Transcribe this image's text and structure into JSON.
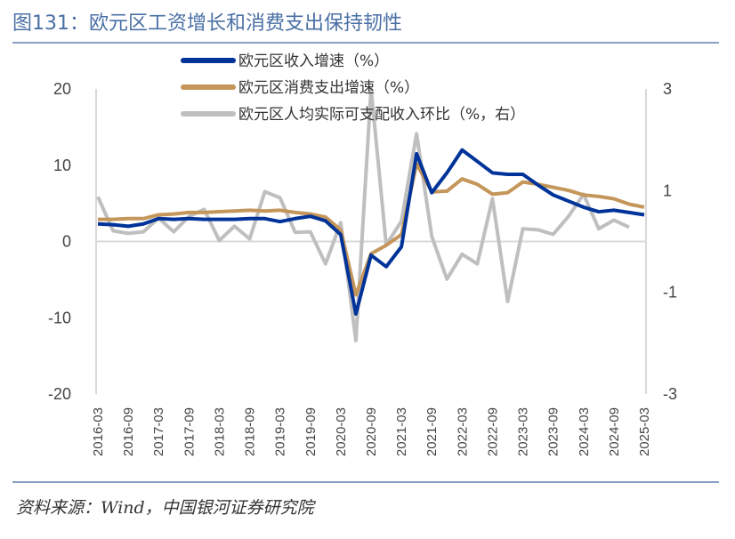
{
  "title": "图131：欧元区工资增长和消费支出保持韧性",
  "source": "资料来源：Wind，中国银河证券研究院",
  "chart_data": {
    "type": "line",
    "title": "",
    "legend_position": "top",
    "grid": false,
    "y_left": {
      "range": [
        -20,
        20
      ],
      "ticks": [
        20,
        10,
        0,
        -10,
        -20
      ]
    },
    "y_right": {
      "range": [
        -3,
        3
      ],
      "ticks": [
        3,
        1,
        -1,
        -3
      ]
    },
    "x_tick_labels": [
      "2016-03",
      "2016-09",
      "2017-03",
      "2017-09",
      "2018-03",
      "2018-09",
      "2019-03",
      "2019-09",
      "2020-03",
      "2020-09",
      "2021-03",
      "2021-09",
      "2022-03",
      "2022-09",
      "2023-03",
      "2023-09",
      "2024-03",
      "2024-09",
      "2025-03"
    ],
    "x": [
      "2016-03",
      "2016-06",
      "2016-09",
      "2016-12",
      "2017-03",
      "2017-06",
      "2017-09",
      "2017-12",
      "2018-03",
      "2018-06",
      "2018-09",
      "2018-12",
      "2019-03",
      "2019-06",
      "2019-09",
      "2019-12",
      "2020-03",
      "2020-06",
      "2020-09",
      "2020-12",
      "2021-03",
      "2021-06",
      "2021-09",
      "2021-12",
      "2022-03",
      "2022-06",
      "2022-09",
      "2022-12",
      "2023-03",
      "2023-06",
      "2023-09",
      "2023-12",
      "2024-03",
      "2024-06",
      "2024-09",
      "2024-12",
      "2025-03"
    ],
    "series": [
      {
        "name": "欧元区收入增速（%）",
        "axis": "left",
        "color": "#003399",
        "values": [
          2.3,
          2.2,
          2.0,
          2.3,
          3.0,
          2.9,
          3.0,
          2.9,
          2.9,
          2.9,
          3.0,
          3.0,
          2.6,
          3.0,
          3.3,
          2.7,
          0.9,
          -9.5,
          -1.8,
          -3.3,
          -0.7,
          11.5,
          6.4,
          9.0,
          12.0,
          10.5,
          9.0,
          8.8,
          8.8,
          7.4,
          6.1,
          5.3,
          4.5,
          3.9,
          4.1,
          3.8,
          3.5
        ]
      },
      {
        "name": "欧元区消费支出增速（%）",
        "axis": "left",
        "color": "#c4965a",
        "values": [
          2.9,
          2.9,
          3.0,
          3.0,
          3.5,
          3.6,
          3.8,
          3.8,
          3.9,
          4.0,
          4.1,
          4.0,
          4.1,
          3.8,
          3.6,
          3.2,
          1.5,
          -7.0,
          -1.6,
          -0.5,
          0.9,
          10.2,
          6.5,
          6.6,
          8.2,
          7.5,
          6.2,
          6.4,
          7.8,
          7.5,
          7.1,
          6.7,
          6.1,
          5.9,
          5.6,
          4.9,
          4.5
        ]
      },
      {
        "name": "欧元区人均实际可支配收入环比（%，右）",
        "axis": "right",
        "color": "#bfbfbf",
        "values": [
          0.88,
          0.21,
          0.16,
          0.19,
          0.46,
          0.19,
          0.49,
          0.63,
          0.02,
          0.3,
          0.05,
          0.98,
          0.86,
          0.18,
          0.19,
          -0.44,
          0.37,
          -1.95,
          3.0,
          -0.07,
          0.4,
          2.12,
          0.1,
          -0.74,
          -0.25,
          -0.44,
          0.84,
          -1.18,
          0.25,
          0.23,
          0.14,
          0.49,
          0.93,
          0.25,
          0.42,
          0.28,
          null
        ]
      }
    ]
  }
}
